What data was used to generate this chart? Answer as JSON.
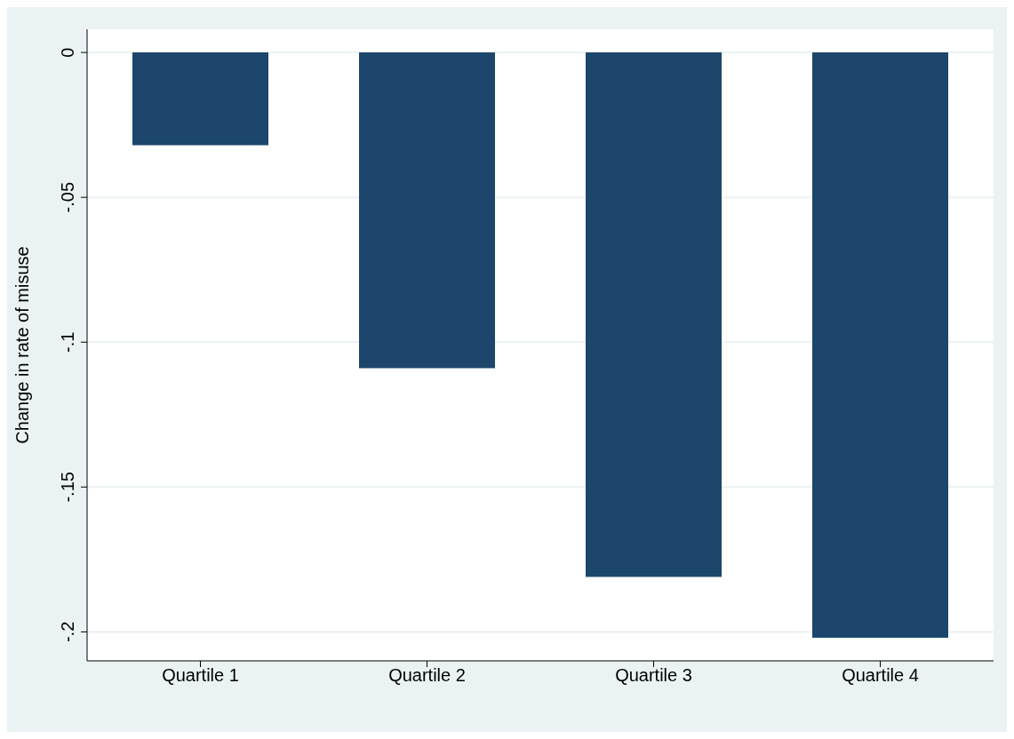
{
  "chart_data": {
    "type": "bar",
    "ylabel": "Change in rate of misuse",
    "categories": [
      "Quartile 1",
      "Quartile 2",
      "Quartile 3",
      "Quartile 4"
    ],
    "values": [
      -0.032,
      -0.109,
      -0.181,
      -0.202
    ],
    "color": "#1c466b",
    "ylim": [
      -0.21,
      0.008
    ],
    "yticks": [
      {
        "value": 0,
        "label": "0"
      },
      {
        "value": -0.05,
        "label": "-.05"
      },
      {
        "value": -0.1,
        "label": "-.1"
      },
      {
        "value": -0.15,
        "label": "-.15"
      },
      {
        "value": -0.2,
        "label": "-.2"
      }
    ],
    "grid": "y",
    "legend": false
  }
}
